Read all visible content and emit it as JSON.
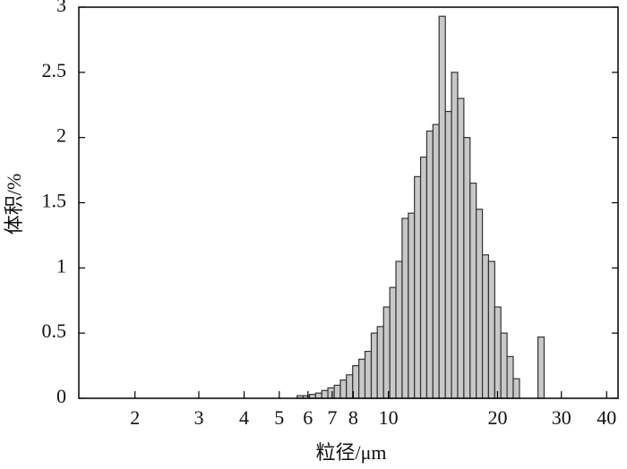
{
  "chart_data": {
    "type": "histogram",
    "x_label": "粒径/μm",
    "y_label": "体积/%",
    "bins": [
      5.6,
      5.82,
      6.06,
      6.3,
      6.55,
      6.81,
      7.09,
      7.37,
      7.66,
      7.97,
      8.29,
      8.62,
      8.97,
      9.32,
      9.7,
      10.09,
      10.49,
      10.91,
      11.35,
      11.8,
      12.27,
      12.76,
      13.27,
      13.8,
      14.36,
      14.93,
      15.53,
      16.15,
      16.8,
      17.47,
      18.17,
      18.89,
      19.65,
      20.43,
      21.25,
      22.1,
      22.99,
      23.91,
      24.86,
      25.86,
      26.89
    ],
    "values": [
      0.02,
      0.02,
      0.03,
      0.04,
      0.06,
      0.08,
      0.1,
      0.14,
      0.18,
      0.25,
      0.3,
      0.36,
      0.5,
      0.55,
      0.7,
      0.85,
      1.05,
      1.38,
      1.42,
      1.7,
      1.85,
      2.05,
      2.1,
      2.93,
      2.2,
      2.5,
      2.3,
      2.0,
      1.65,
      1.45,
      1.1,
      1.05,
      0.7,
      0.5,
      0.32,
      0.15,
      0.0,
      0.0,
      0.0,
      0.47
    ],
    "color": "#c8c8c8",
    "xscale": "log",
    "xlim": [
      1.4,
      43
    ],
    "xticks": [
      2,
      3,
      4,
      5,
      6,
      7,
      8,
      10,
      20,
      30,
      40
    ],
    "ylim": [
      0,
      3
    ],
    "yticks": [
      0,
      0.5,
      1,
      1.5,
      2,
      2.5,
      3
    ]
  }
}
